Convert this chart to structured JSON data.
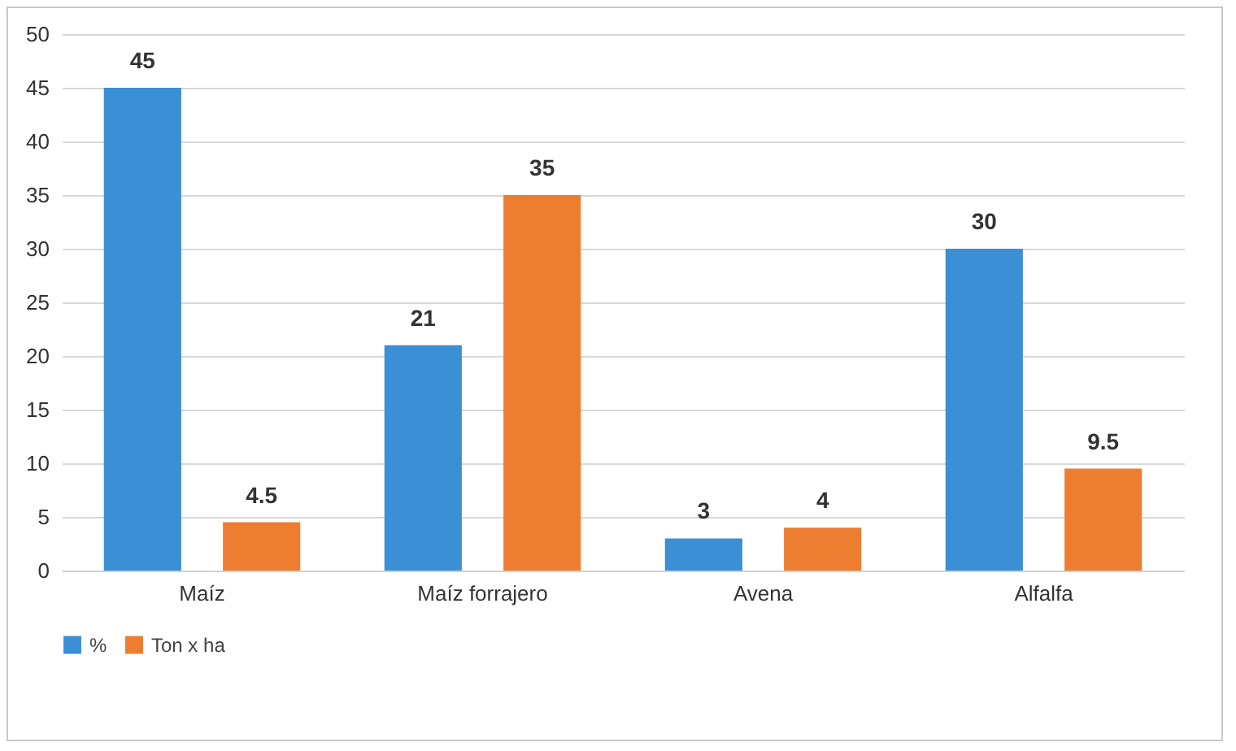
{
  "chart_data": {
    "type": "bar",
    "categories": [
      "Maíz",
      "Maíz forrajero",
      "Avena",
      "Alfalfa"
    ],
    "series": [
      {
        "name": "%",
        "color": "#3b8fd4",
        "values": [
          45,
          21,
          3,
          30
        ]
      },
      {
        "name": "Ton x ha",
        "color": "#ed7d31",
        "values": [
          4.5,
          35,
          4,
          9.5
        ]
      }
    ],
    "ylim": [
      0,
      50
    ],
    "yticks": [
      0,
      5,
      10,
      15,
      20,
      25,
      30,
      35,
      40,
      45,
      50
    ],
    "grid": "y",
    "legend": "bottom",
    "data_labels": true
  }
}
